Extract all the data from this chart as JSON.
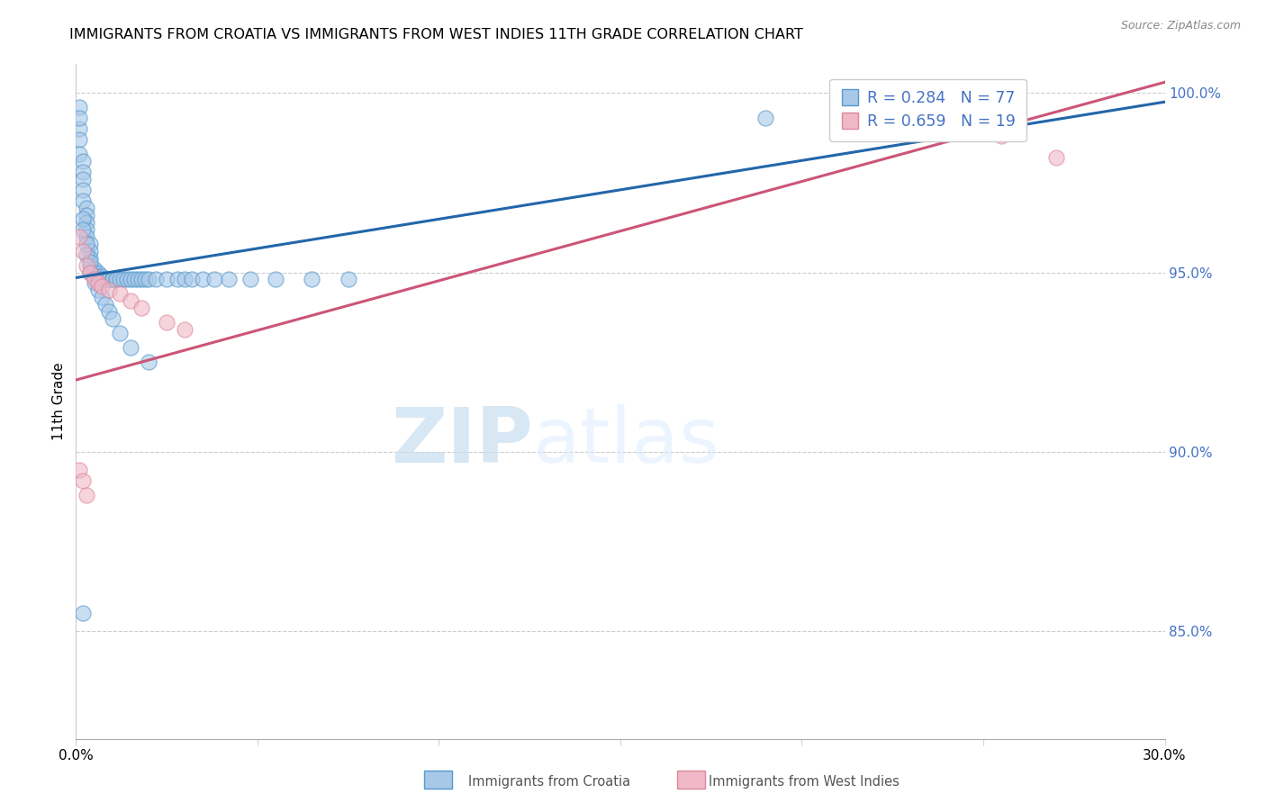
{
  "title": "IMMIGRANTS FROM CROATIA VS IMMIGRANTS FROM WEST INDIES 11TH GRADE CORRELATION CHART",
  "source": "Source: ZipAtlas.com",
  "ylabel": "11th Grade",
  "legend_label_1": "Immigrants from Croatia",
  "legend_label_2": "Immigrants from West Indies",
  "R1": 0.284,
  "N1": 77,
  "R2": 0.659,
  "N2": 19,
  "color_blue": "#a8c8e8",
  "color_blue_edge": "#5599cc",
  "color_blue_line": "#2266aa",
  "color_pink": "#f0b8c8",
  "color_pink_edge": "#dd8899",
  "color_pink_line": "#cc5577",
  "color_text_blue": "#4472c4",
  "watermark_zip": "ZIP",
  "watermark_atlas": "atlas",
  "xmin": 0.0,
  "xmax": 0.3,
  "ymin": 0.82,
  "ymax": 1.008,
  "yticks": [
    0.85,
    0.9,
    0.95,
    1.0
  ],
  "blue_trend_x": [
    0.0,
    0.3
  ],
  "blue_trend_y": [
    0.9485,
    0.9975
  ],
  "pink_trend_x": [
    0.0,
    0.3
  ],
  "pink_trend_y": [
    0.92,
    1.003
  ],
  "blue_x": [
    0.001,
    0.001,
    0.001,
    0.002,
    0.002,
    0.002,
    0.002,
    0.002,
    0.003,
    0.003,
    0.003,
    0.003,
    0.003,
    0.004,
    0.004,
    0.004,
    0.004,
    0.005,
    0.005,
    0.005,
    0.005,
    0.006,
    0.006,
    0.006,
    0.007,
    0.007,
    0.007,
    0.008,
    0.008,
    0.008,
    0.009,
    0.009,
    0.01,
    0.01,
    0.01,
    0.011,
    0.011,
    0.012,
    0.013,
    0.014,
    0.015,
    0.016,
    0.017,
    0.018,
    0.019,
    0.02,
    0.022,
    0.025,
    0.028,
    0.03,
    0.032,
    0.035,
    0.038,
    0.042,
    0.048,
    0.055,
    0.065,
    0.075,
    0.001,
    0.001,
    0.002,
    0.002,
    0.003,
    0.003,
    0.004,
    0.004,
    0.005,
    0.006,
    0.007,
    0.008,
    0.009,
    0.01,
    0.012,
    0.015,
    0.02,
    0.19,
    0.002
  ],
  "blue_y": [
    0.99,
    0.987,
    0.983,
    0.981,
    0.978,
    0.976,
    0.973,
    0.97,
    0.968,
    0.966,
    0.964,
    0.962,
    0.96,
    0.958,
    0.956,
    0.954,
    0.952,
    0.951,
    0.95,
    0.95,
    0.949,
    0.95,
    0.949,
    0.948,
    0.949,
    0.948,
    0.948,
    0.948,
    0.948,
    0.948,
    0.948,
    0.948,
    0.948,
    0.948,
    0.948,
    0.948,
    0.948,
    0.948,
    0.948,
    0.948,
    0.948,
    0.948,
    0.948,
    0.948,
    0.948,
    0.948,
    0.948,
    0.948,
    0.948,
    0.948,
    0.948,
    0.948,
    0.948,
    0.948,
    0.948,
    0.948,
    0.948,
    0.948,
    0.996,
    0.993,
    0.965,
    0.962,
    0.958,
    0.955,
    0.953,
    0.95,
    0.947,
    0.945,
    0.943,
    0.941,
    0.939,
    0.937,
    0.933,
    0.929,
    0.925,
    0.993,
    0.855
  ],
  "pink_x": [
    0.001,
    0.002,
    0.003,
    0.004,
    0.005,
    0.006,
    0.007,
    0.009,
    0.012,
    0.015,
    0.018,
    0.025,
    0.03,
    0.001,
    0.002,
    0.003,
    0.22,
    0.255,
    0.27
  ],
  "pink_y": [
    0.96,
    0.956,
    0.952,
    0.95,
    0.948,
    0.947,
    0.946,
    0.945,
    0.944,
    0.942,
    0.94,
    0.936,
    0.934,
    0.895,
    0.892,
    0.888,
    0.997,
    0.988,
    0.982
  ]
}
